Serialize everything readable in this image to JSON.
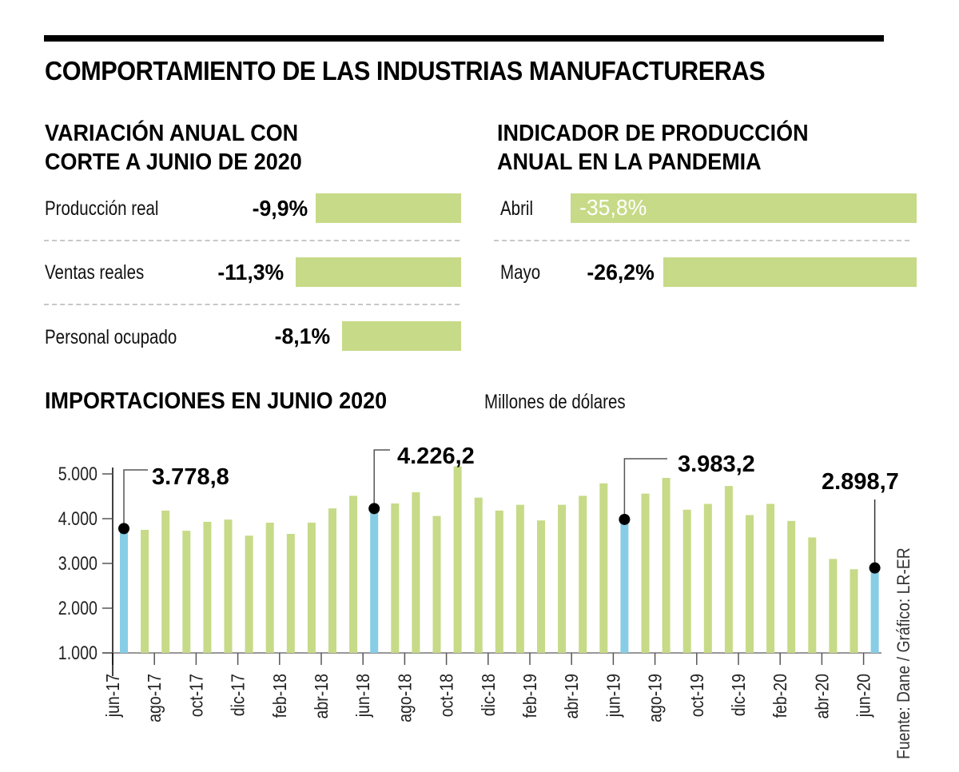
{
  "header": {
    "title": "COMPORTAMIENTO DE LAS INDUSTRIAS MANUFACTURERAS"
  },
  "annual_variation": {
    "title_line1": "VARIACIÓN ANUAL CON",
    "title_line2": "CORTE A JUNIO DE 2020",
    "rows": [
      {
        "label": "Producción real",
        "value_text": "-9,9%",
        "value": -9.9
      },
      {
        "label": "Ventas reales",
        "value_text": "-11,3%",
        "value": -11.3
      },
      {
        "label": "Personal ocupado",
        "value_text": "-8,1%",
        "value": -8.1
      }
    ]
  },
  "production_indicator": {
    "title_line1": "INDICADOR DE PRODUCCIÓN",
    "title_line2": "ANUAL EN LA PANDEMIA",
    "rows": [
      {
        "label": "Abril",
        "value_text": "-35,8%",
        "value": -35.8
      },
      {
        "label": "Mayo",
        "value_text": "-26,2%",
        "value": -26.2
      }
    ]
  },
  "colors": {
    "bar_green": "#c7da87",
    "bar_highlight": "#87cde5",
    "text": "#000000",
    "dash": "#c8c8c8"
  },
  "source": "Fuente: Dane / Gráfico: LR-ER",
  "chart_data": {
    "type": "bar",
    "title": "IMPORTACIONES EN JUNIO 2020",
    "subtitle": "Millones de dólares",
    "xlabel": "",
    "ylabel": "",
    "ylim": [
      1000,
      5000
    ],
    "yticks": [
      1000,
      2000,
      3000,
      4000,
      5000
    ],
    "ytick_labels": [
      "1.000",
      "2.000",
      "3.000",
      "4.000",
      "5.000"
    ],
    "grid": false,
    "categories": [
      "jun-17",
      "jul-17",
      "ago-17",
      "sep-17",
      "oct-17",
      "nov-17",
      "dic-17",
      "ene-18",
      "feb-18",
      "mar-18",
      "abr-18",
      "may-18",
      "jun-18",
      "jul-18",
      "ago-18",
      "sep-18",
      "oct-18",
      "nov-18",
      "dic-18",
      "ene-19",
      "feb-19",
      "mar-19",
      "abr-19",
      "may-19",
      "jun-19",
      "jul-19",
      "ago-19",
      "sep-19",
      "oct-19",
      "nov-19",
      "dic-19",
      "ene-20",
      "feb-20",
      "mar-20",
      "abr-20",
      "may-20",
      "jun-20"
    ],
    "xtick_labels": [
      "jun-17",
      "ago-17",
      "oct-17",
      "dic-17",
      "feb-18",
      "abr-18",
      "jun-18",
      "ago-18",
      "oct-18",
      "dic-18",
      "feb-19",
      "abr-19",
      "jun-19",
      "ago-19",
      "oct-19",
      "dic-19",
      "feb-20",
      "abr-20",
      "jun-20"
    ],
    "values": [
      3778.8,
      3750,
      4180,
      3730,
      3930,
      3980,
      3620,
      3910,
      3660,
      3910,
      4230,
      4510,
      4226.2,
      4340,
      4590,
      4060,
      5170,
      4470,
      4180,
      4310,
      3960,
      4310,
      4510,
      4790,
      3983.2,
      4560,
      4910,
      4200,
      4330,
      4730,
      4080,
      4330,
      3950,
      3580,
      3100,
      2870,
      2898.7
    ],
    "highlighted": [
      {
        "index": 0,
        "label": "3.778,8"
      },
      {
        "index": 12,
        "label": "4.226,2"
      },
      {
        "index": 24,
        "label": "3.983,2"
      },
      {
        "index": 36,
        "label": "2.898,7"
      }
    ]
  }
}
